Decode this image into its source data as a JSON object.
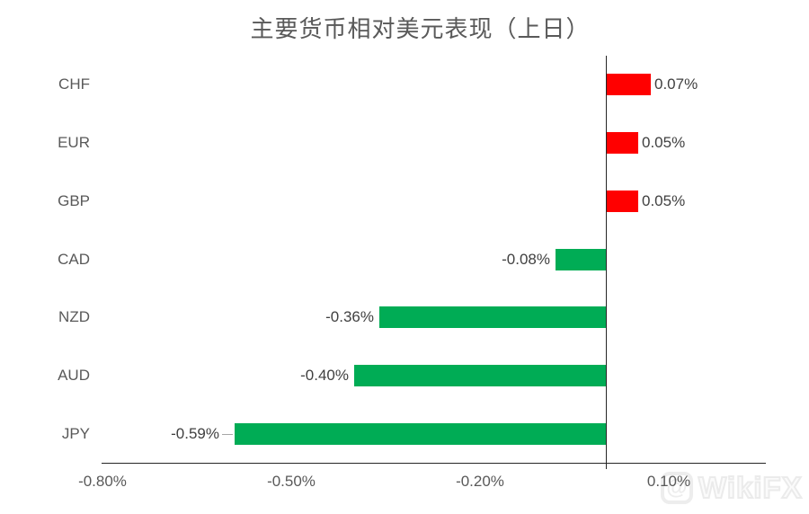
{
  "title": "主要货币相对美元表现（上日）",
  "watermark": {
    "text": "WikiFX",
    "icon": "wikifx-logo-icon"
  },
  "colors": {
    "positive_bar": "#FF0000",
    "negative_bar": "#00AC55",
    "axis": "#262626",
    "category_text": "#595959",
    "value_text": "#404040",
    "tick_text": "#595959",
    "title_text": "#595959"
  },
  "chart_data": {
    "type": "bar",
    "orientation": "horizontal",
    "title": "主要货币相对美元表现（上日）",
    "xlabel": "",
    "ylabel": "",
    "categories": [
      "CHF",
      "EUR",
      "GBP",
      "CAD",
      "NZD",
      "AUD",
      "JPY"
    ],
    "values": [
      0.07,
      0.05,
      0.05,
      -0.08,
      -0.36,
      -0.4,
      -0.59
    ],
    "value_labels": [
      "0.07%",
      "0.05%",
      "0.05%",
      "-0.08%",
      "-0.36%",
      "-0.40%",
      "-0.59%"
    ],
    "x_ticks": [
      {
        "value": -0.8,
        "label": "-0.80%"
      },
      {
        "value": -0.5,
        "label": "-0.50%"
      },
      {
        "value": -0.2,
        "label": "-0.20%"
      },
      {
        "value": 0.1,
        "label": "0.10%"
      }
    ],
    "xlim": [
      -0.8,
      0.25
    ],
    "grid": false,
    "legend": false,
    "positive_color": "#FF0000",
    "negative_color": "#00AC55",
    "leader_line_category": "JPY"
  }
}
